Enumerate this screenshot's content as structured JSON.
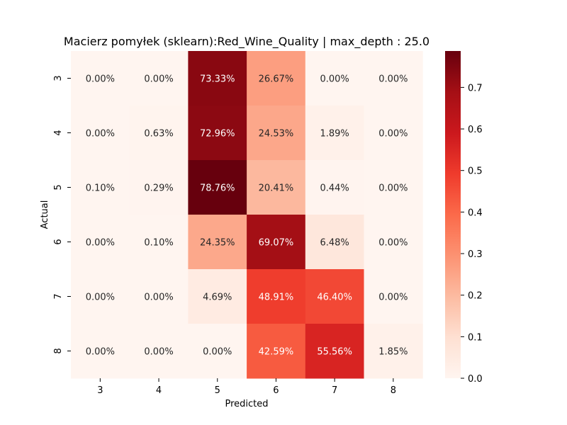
{
  "chart_data": {
    "type": "heatmap",
    "title": "Macierz pomyłek (sklearn):Red_Wine_Quality | max_depth : 25.0",
    "xlabel": "Predicted",
    "ylabel": "Actual",
    "x_categories": [
      "3",
      "4",
      "5",
      "6",
      "7",
      "8"
    ],
    "y_categories": [
      "3",
      "4",
      "5",
      "6",
      "7",
      "8"
    ],
    "values": [
      [
        0.0,
        0.0,
        0.7333,
        0.2667,
        0.0,
        0.0
      ],
      [
        0.0,
        0.0063,
        0.7296,
        0.2453,
        0.0189,
        0.0
      ],
      [
        0.001,
        0.0029,
        0.7876,
        0.2041,
        0.0044,
        0.0
      ],
      [
        0.0,
        0.001,
        0.2435,
        0.6907,
        0.0648,
        0.0
      ],
      [
        0.0,
        0.0,
        0.0469,
        0.4891,
        0.464,
        0.0
      ],
      [
        0.0,
        0.0,
        0.0,
        0.4259,
        0.5556,
        0.0185
      ]
    ],
    "cell_labels": [
      [
        "0.00%",
        "0.00%",
        "73.33%",
        "26.67%",
        "0.00%",
        "0.00%"
      ],
      [
        "0.00%",
        "0.63%",
        "72.96%",
        "24.53%",
        "1.89%",
        "0.00%"
      ],
      [
        "0.10%",
        "0.29%",
        "78.76%",
        "20.41%",
        "0.44%",
        "0.00%"
      ],
      [
        "0.00%",
        "0.10%",
        "24.35%",
        "69.07%",
        "6.48%",
        "0.00%"
      ],
      [
        "0.00%",
        "0.00%",
        "4.69%",
        "48.91%",
        "46.40%",
        "0.00%"
      ],
      [
        "0.00%",
        "0.00%",
        "0.00%",
        "42.59%",
        "55.56%",
        "1.85%"
      ]
    ],
    "colorbar": {
      "colormap": "Reds",
      "range": [
        0,
        0.7876
      ],
      "ticks": [
        "0.0",
        "0.1",
        "0.2",
        "0.3",
        "0.4",
        "0.5",
        "0.6",
        "0.7"
      ]
    }
  }
}
